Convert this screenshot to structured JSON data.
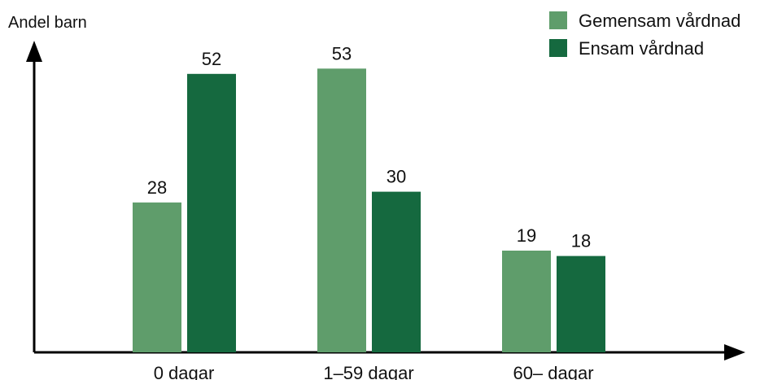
{
  "chart_data": {
    "type": "bar",
    "title": "",
    "xlabel": "",
    "ylabel": "Andel barn",
    "categories": [
      "0 dagar",
      "1–59 dagar",
      "60– dagar"
    ],
    "series": [
      {
        "name": "Gemensam vårdnad",
        "color": "#5f9d6b",
        "values": [
          28,
          53,
          19
        ]
      },
      {
        "name": "Ensam vårdnad",
        "color": "#15693f",
        "values": [
          52,
          30,
          18
        ]
      }
    ],
    "ylim": [
      0,
      60
    ],
    "grid": false,
    "legend_position": "top-right"
  }
}
